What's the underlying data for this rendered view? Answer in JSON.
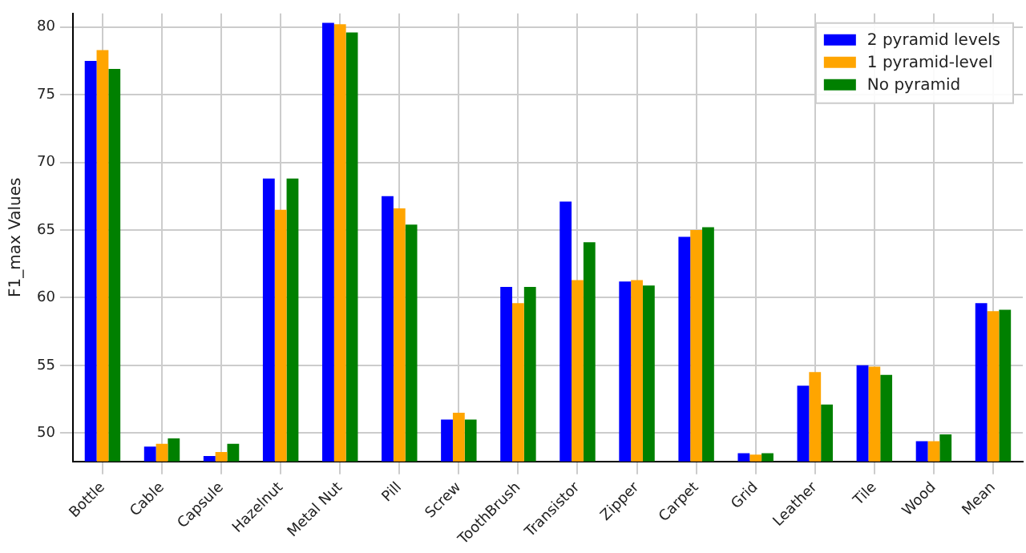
{
  "chart_data": {
    "type": "bar",
    "ylabel": "F1_max Values",
    "categories": [
      "Bottle",
      "Cable",
      "Capsule",
      "Hazelnut",
      "Metal Nut",
      "Pill",
      "Screw",
      "ToothBrush",
      "Transistor",
      "Zipper",
      "Carpet",
      "Grid",
      "Leather",
      "Tile",
      "Wood",
      "Mean"
    ],
    "series": [
      {
        "name": "2 pyramid levels",
        "color": "#0000ff",
        "values": [
          77.5,
          49.0,
          48.3,
          68.8,
          80.3,
          67.5,
          51.0,
          60.8,
          67.1,
          61.2,
          64.5,
          48.5,
          53.5,
          55.0,
          49.4,
          59.6
        ]
      },
      {
        "name": "1 pyramid-level",
        "color": "#ffa500",
        "values": [
          78.3,
          49.2,
          48.6,
          66.5,
          80.2,
          66.6,
          51.5,
          59.6,
          61.3,
          61.3,
          65.0,
          48.4,
          54.5,
          54.9,
          49.4,
          59.0
        ]
      },
      {
        "name": "No pyramid",
        "color": "#008000",
        "values": [
          76.9,
          49.6,
          49.2,
          68.8,
          79.6,
          65.4,
          51.0,
          60.8,
          64.1,
          60.9,
          65.2,
          48.5,
          52.1,
          54.3,
          49.9,
          59.1
        ]
      }
    ],
    "ylim": [
      47.9,
      81
    ],
    "yticks": [
      50,
      55,
      60,
      65,
      70,
      75,
      80
    ],
    "grid": true,
    "legend": "top right"
  }
}
